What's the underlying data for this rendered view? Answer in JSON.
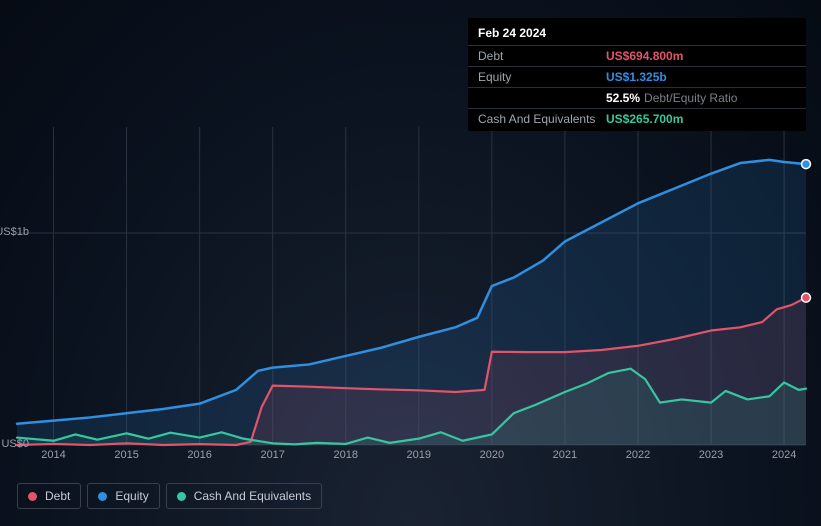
{
  "tooltip": {
    "date": "Feb 24 2024",
    "rows": [
      {
        "label": "Debt",
        "value": "US$694.800m",
        "color": "#e2546b",
        "extra": ""
      },
      {
        "label": "Equity",
        "value": "US$1.325b",
        "color": "#2f8fe0",
        "extra": ""
      },
      {
        "label": "",
        "value": "52.5%",
        "color": "#ffffff",
        "extra": "Debt/Equity Ratio"
      },
      {
        "label": "Cash And Equivalents",
        "value": "US$265.700m",
        "color": "#36c7a0",
        "extra": ""
      }
    ]
  },
  "chart": {
    "type": "area",
    "background_gradient_inner": "#1a2332",
    "background_gradient_outer": "#060b14",
    "xlim": [
      2013.5,
      2024.3
    ],
    "ylim": [
      0,
      1500
    ],
    "xticks": [
      2014,
      2015,
      2016,
      2017,
      2018,
      2019,
      2020,
      2021,
      2022,
      2023,
      2024
    ],
    "yticks": [
      {
        "v": 0,
        "label": "US$0"
      },
      {
        "v": 1000,
        "label": "US$1b"
      }
    ],
    "grid_color": "#2a3240",
    "series": [
      {
        "name": "Equity",
        "color": "#2f8fe0",
        "fill": "#2f8fe0",
        "fill_opacity": 0.15,
        "line_width": 2.5,
        "end_marker": true,
        "marker_color": "#2f8fe0",
        "points": [
          [
            2013.5,
            100
          ],
          [
            2014,
            115
          ],
          [
            2014.5,
            130
          ],
          [
            2015,
            150
          ],
          [
            2015.5,
            170
          ],
          [
            2016,
            195
          ],
          [
            2016.5,
            260
          ],
          [
            2016.8,
            350
          ],
          [
            2017,
            365
          ],
          [
            2017.5,
            380
          ],
          [
            2018,
            420
          ],
          [
            2018.5,
            460
          ],
          [
            2019,
            510
          ],
          [
            2019.5,
            555
          ],
          [
            2019.8,
            600
          ],
          [
            2020,
            750
          ],
          [
            2020.3,
            790
          ],
          [
            2020.7,
            870
          ],
          [
            2021,
            960
          ],
          [
            2021.5,
            1050
          ],
          [
            2022,
            1140
          ],
          [
            2022.5,
            1210
          ],
          [
            2023,
            1280
          ],
          [
            2023.4,
            1330
          ],
          [
            2023.8,
            1345
          ],
          [
            2024,
            1335
          ],
          [
            2024.3,
            1325
          ]
        ]
      },
      {
        "name": "Debt",
        "color": "#e2546b",
        "fill": "#e2546b",
        "fill_opacity": 0.12,
        "line_width": 2.2,
        "end_marker": true,
        "marker_color": "#e2546b",
        "points": [
          [
            2013.5,
            0
          ],
          [
            2014,
            5
          ],
          [
            2014.5,
            0
          ],
          [
            2015,
            8
          ],
          [
            2015.5,
            0
          ],
          [
            2016,
            4
          ],
          [
            2016.5,
            0
          ],
          [
            2016.7,
            15
          ],
          [
            2016.85,
            180
          ],
          [
            2017,
            280
          ],
          [
            2017.5,
            275
          ],
          [
            2018,
            268
          ],
          [
            2018.5,
            262
          ],
          [
            2019,
            258
          ],
          [
            2019.5,
            250
          ],
          [
            2019.9,
            260
          ],
          [
            2020,
            440
          ],
          [
            2020.5,
            438
          ],
          [
            2021,
            438
          ],
          [
            2021.5,
            448
          ],
          [
            2022,
            468
          ],
          [
            2022.5,
            500
          ],
          [
            2023,
            540
          ],
          [
            2023.4,
            555
          ],
          [
            2023.7,
            580
          ],
          [
            2023.9,
            640
          ],
          [
            2024.1,
            660
          ],
          [
            2024.3,
            695
          ]
        ]
      },
      {
        "name": "Cash And Equivalents",
        "color": "#36c7a0",
        "fill": "#36c7a0",
        "fill_opacity": 0.12,
        "line_width": 2.2,
        "end_marker": false,
        "marker_color": "#36c7a0",
        "points": [
          [
            2013.5,
            35
          ],
          [
            2014,
            20
          ],
          [
            2014.3,
            50
          ],
          [
            2014.6,
            25
          ],
          [
            2015,
            55
          ],
          [
            2015.3,
            30
          ],
          [
            2015.6,
            58
          ],
          [
            2016,
            35
          ],
          [
            2016.3,
            60
          ],
          [
            2016.6,
            30
          ],
          [
            2017,
            8
          ],
          [
            2017.3,
            3
          ],
          [
            2017.6,
            10
          ],
          [
            2018,
            5
          ],
          [
            2018.3,
            35
          ],
          [
            2018.6,
            10
          ],
          [
            2019,
            30
          ],
          [
            2019.3,
            60
          ],
          [
            2019.6,
            20
          ],
          [
            2020,
            50
          ],
          [
            2020.3,
            150
          ],
          [
            2020.6,
            190
          ],
          [
            2021,
            250
          ],
          [
            2021.3,
            290
          ],
          [
            2021.6,
            340
          ],
          [
            2021.9,
            360
          ],
          [
            2022.1,
            310
          ],
          [
            2022.3,
            200
          ],
          [
            2022.6,
            215
          ],
          [
            2023,
            200
          ],
          [
            2023.2,
            255
          ],
          [
            2023.5,
            215
          ],
          [
            2023.8,
            230
          ],
          [
            2024,
            295
          ],
          [
            2024.2,
            260
          ],
          [
            2024.3,
            266
          ]
        ]
      }
    ]
  },
  "legend": {
    "items": [
      {
        "label": "Debt",
        "color": "#e2546b"
      },
      {
        "label": "Equity",
        "color": "#2f8fe0"
      },
      {
        "label": "Cash And Equivalents",
        "color": "#36c7a0"
      }
    ]
  }
}
